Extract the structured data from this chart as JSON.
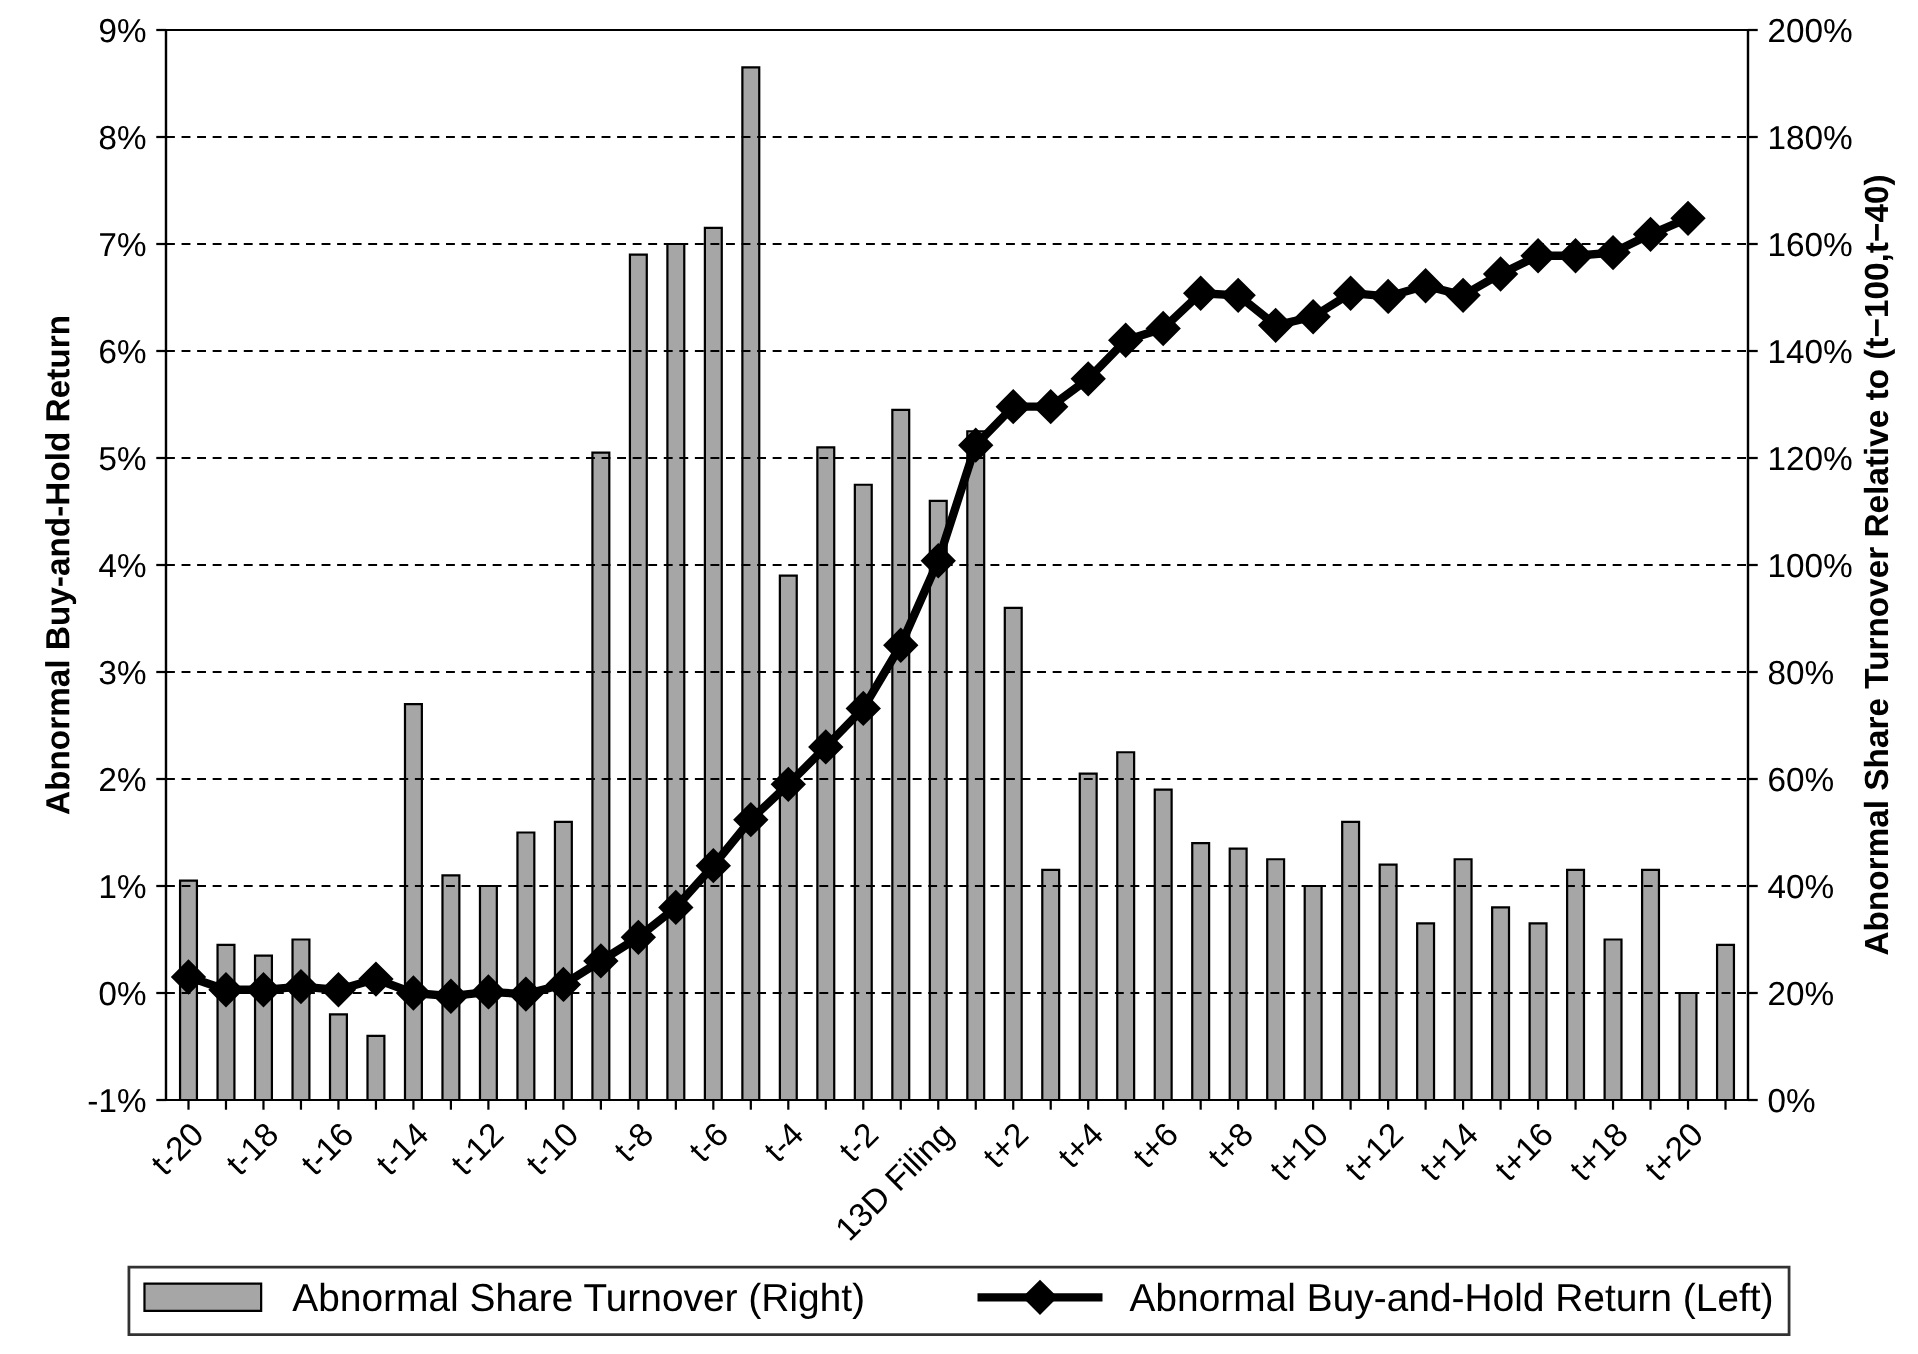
{
  "chart_data": {
    "type": "bar",
    "categories": [
      "t-20",
      null,
      "t-18",
      null,
      "t-16",
      null,
      "t-14",
      null,
      "t-12",
      null,
      "t-10",
      null,
      "t-8",
      null,
      "t-6",
      null,
      "t-4",
      null,
      "t-2",
      null,
      "13D Filing",
      null,
      "t+2",
      null,
      "t+4",
      null,
      "t+6",
      null,
      "t+8",
      null,
      "t+10",
      null,
      "t+12",
      null,
      "t+14",
      null,
      "t+16",
      null,
      "t+18",
      null,
      "t+20",
      null
    ],
    "series": [
      {
        "name": "Abnormal Share Turnover (Right)",
        "axis": "y2",
        "color": "#a6a6a6",
        "values": [
          41,
          29,
          27,
          30,
          16,
          12,
          74,
          42,
          40,
          50,
          52,
          121,
          158,
          160,
          163,
          193,
          98,
          122,
          115,
          129,
          112,
          125,
          92,
          43,
          61,
          65,
          58,
          48,
          47,
          45,
          40,
          52,
          44,
          33,
          45,
          36,
          33,
          43,
          30,
          43,
          20,
          29
        ]
      },
      {
        "name": "Abnormal Buy-and-Hold Return (Left)",
        "type": "line",
        "color": "#000000",
        "marker": "diamond",
        "line_style": "solid",
        "values": [
          0.15,
          0.03,
          0.03,
          0.06,
          0.03,
          0.13,
          0.0,
          -0.03,
          0.01,
          -0.01,
          0.08,
          0.3,
          0.52,
          0.8,
          1.19,
          1.62,
          1.95,
          2.3,
          2.66,
          3.25,
          4.04,
          5.12,
          5.48,
          5.48,
          5.74,
          6.1,
          6.21,
          6.54,
          6.52,
          6.24,
          6.32,
          6.54,
          6.51,
          6.61,
          6.52,
          6.72,
          6.89,
          6.89,
          6.92,
          7.09,
          7.24,
          null
        ]
      }
    ],
    "ylabel": "Abnormal Buy-and-Hold Return",
    "y2label": "Abnormal Share Turnover Relative to (t−100,t−40)",
    "ylim": [
      -1,
      9
    ],
    "yticks": [
      {
        "value": -1,
        "label": "-1%"
      },
      {
        "value": 0,
        "label": "0%"
      },
      {
        "value": 1,
        "label": "1%"
      },
      {
        "value": 2,
        "label": "2%"
      },
      {
        "value": 3,
        "label": "3%"
      },
      {
        "value": 4,
        "label": "4%"
      },
      {
        "value": 5,
        "label": "5%"
      },
      {
        "value": 6,
        "label": "6%"
      },
      {
        "value": 7,
        "label": "7%"
      },
      {
        "value": 8,
        "label": "8%"
      },
      {
        "value": 9,
        "label": "9%"
      }
    ],
    "y2lim": [
      0,
      200
    ],
    "y2ticks": [
      {
        "value": 0,
        "label": "0%"
      },
      {
        "value": 20,
        "label": "20%"
      },
      {
        "value": 40,
        "label": "40%"
      },
      {
        "value": 60,
        "label": "60%"
      },
      {
        "value": 80,
        "label": "80%"
      },
      {
        "value": 100,
        "label": "100%"
      },
      {
        "value": 120,
        "label": "120%"
      },
      {
        "value": 140,
        "label": "140%"
      },
      {
        "value": 160,
        "label": "160%"
      },
      {
        "value": 180,
        "label": "180%"
      },
      {
        "value": 200,
        "label": "200%"
      }
    ],
    "grid": "y",
    "legend": "bottom"
  }
}
